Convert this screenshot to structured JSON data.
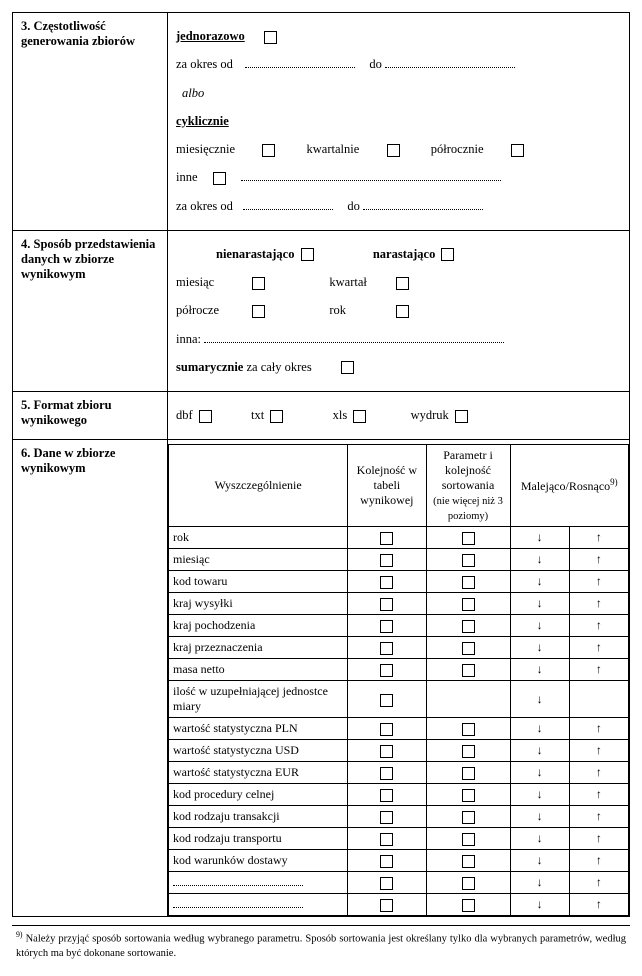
{
  "s3": {
    "title": "3. Częstotliwość generowania zbiorów",
    "jednorazowo": "jednorazowo",
    "za_okres_od": "za okres od",
    "do": "do",
    "albo": "albo",
    "cyklicznie": "cyklicznie",
    "miesiecznie": "miesięcznie",
    "kwartalnie": "kwartalnie",
    "polrocznie": "półrocznie",
    "inne": "inne",
    "za_okres_od2": "za okres od",
    "do2": "do"
  },
  "s4": {
    "title": "4. Sposób przedstawienia danych w zbiorze wynikowym",
    "nienarastajaco": "nienarastająco",
    "narastajaco": "narastająco",
    "miesiac": "miesiąc",
    "kwartal": "kwartał",
    "polrocze": "półrocze",
    "rok": "rok",
    "inna": "inna:",
    "sumarycznie_bold": "sumarycznie",
    "sumarycznie_rest": " za cały okres"
  },
  "s5": {
    "title": "5. Format zbioru wynikowego",
    "dbf": "dbf",
    "txt": "txt",
    "xls": "xls",
    "wydruk": "wydruk"
  },
  "s6": {
    "title": "6. Dane w zbiorze wynikowym",
    "hdr_wyszcz": "Wyszczególnienie",
    "hdr_kolej": "Kolejność w tabeli wynikowej",
    "hdr_param": "Parametr i kolejność sortowania",
    "hdr_param_small": "(nie więcej niż 3 poziomy)",
    "hdr_sort": "Malejąco/Rosnąco",
    "hdr_sort_sup": "9)",
    "rows": [
      {
        "label": "rok",
        "cb1": true,
        "cb2": true,
        "down": true,
        "up": true
      },
      {
        "label": "miesiąc",
        "cb1": true,
        "cb2": true,
        "down": true,
        "up": true
      },
      {
        "label": "kod towaru",
        "cb1": true,
        "cb2": true,
        "down": true,
        "up": true
      },
      {
        "label": "kraj wysyłki",
        "cb1": true,
        "cb2": true,
        "down": true,
        "up": true
      },
      {
        "label": "kraj pochodzenia",
        "cb1": true,
        "cb2": true,
        "down": true,
        "up": true
      },
      {
        "label": "kraj przeznaczenia",
        "cb1": true,
        "cb2": true,
        "down": true,
        "up": true
      },
      {
        "label": "masa netto",
        "cb1": true,
        "cb2": true,
        "down": true,
        "up": true
      },
      {
        "label": "ilość w uzupełniającej jednostce miary",
        "cb1": true,
        "cb2": false,
        "down": true,
        "up": false
      },
      {
        "label": "wartość statystyczna PLN",
        "cb1": true,
        "cb2": true,
        "down": true,
        "up": true
      },
      {
        "label": "wartość statystyczna USD",
        "cb1": true,
        "cb2": true,
        "down": true,
        "up": true
      },
      {
        "label": "wartość statystyczna EUR",
        "cb1": true,
        "cb2": true,
        "down": true,
        "up": true
      },
      {
        "label": "kod procedury celnej",
        "cb1": true,
        "cb2": true,
        "down": true,
        "up": true
      },
      {
        "label": "kod rodzaju transakcji",
        "cb1": true,
        "cb2": true,
        "down": true,
        "up": true
      },
      {
        "label": "kod rodzaju transportu",
        "cb1": true,
        "cb2": true,
        "down": true,
        "up": true
      },
      {
        "label": "kod warunków dostawy",
        "cb1": true,
        "cb2": true,
        "down": true,
        "up": true
      },
      {
        "label": "",
        "dotted": true,
        "cb1": true,
        "cb2": true,
        "down": true,
        "up": true
      },
      {
        "label": "",
        "dotted": true,
        "cb1": true,
        "cb2": true,
        "down": true,
        "up": true
      }
    ]
  },
  "footnote": {
    "sup": "9)",
    "text": "Należy przyjąć sposób sortowania według wybranego parametru. Sposób sortowania jest określany tylko dla wybranych parametrów, według których ma być dokonane sortowanie."
  },
  "glyphs": {
    "down": "↓",
    "up": "↑"
  }
}
